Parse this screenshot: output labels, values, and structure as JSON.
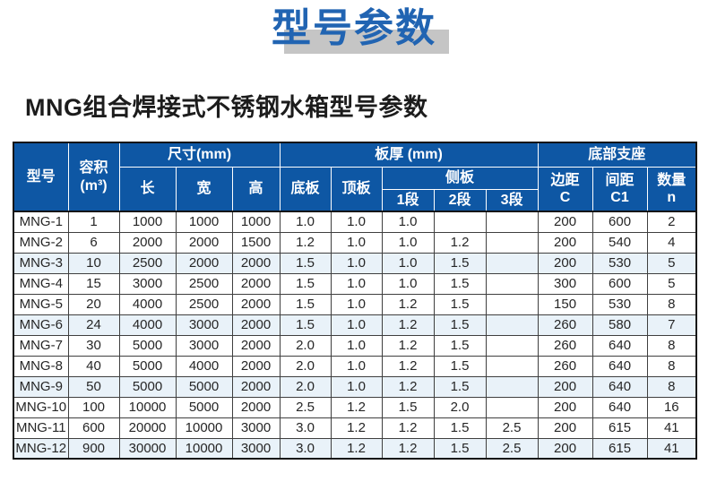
{
  "page": {
    "title": "型号参数",
    "subtitle": "MNG组合焊接式不锈钢水箱型号参数"
  },
  "colors": {
    "header_blue": "#0e57a4",
    "title_blue": "#2164b2",
    "title_shadow": "#c5c5c5",
    "row_highlight": "#e9f2f9"
  },
  "table": {
    "header": {
      "model": "型号",
      "volume": "容积\n(m³)",
      "size_group": "尺寸(mm)",
      "length": "长",
      "width": "宽",
      "height": "高",
      "thickness_group": "板厚 (mm)",
      "bottom_plate": "底板",
      "top_plate": "顶板",
      "side_plate": "侧板",
      "seg1": "1段",
      "seg2": "2段",
      "seg3": "3段",
      "support_group": "底部支座",
      "edge_distance": "边距\nC",
      "spacing": "间距\nC1",
      "quantity": "数量\nn"
    },
    "rows": [
      [
        "MNG-1",
        "1",
        "1000",
        "1000",
        "1000",
        "1.0",
        "1.0",
        "1.0",
        "",
        "",
        "200",
        "600",
        "2"
      ],
      [
        "MNG-2",
        "6",
        "2000",
        "2000",
        "1500",
        "1.2",
        "1.0",
        "1.0",
        "1.2",
        "",
        "200",
        "540",
        "4"
      ],
      [
        "MNG-3",
        "10",
        "2500",
        "2000",
        "2000",
        "1.5",
        "1.0",
        "1.0",
        "1.5",
        "",
        "200",
        "530",
        "5"
      ],
      [
        "MNG-4",
        "15",
        "3000",
        "2500",
        "2000",
        "1.5",
        "1.0",
        "1.0",
        "1.5",
        "",
        "300",
        "600",
        "5"
      ],
      [
        "MNG-5",
        "20",
        "4000",
        "2500",
        "2000",
        "1.5",
        "1.0",
        "1.2",
        "1.5",
        "",
        "150",
        "530",
        "8"
      ],
      [
        "MNG-6",
        "24",
        "4000",
        "3000",
        "2000",
        "1.5",
        "1.0",
        "1.2",
        "1.5",
        "",
        "260",
        "580",
        "7"
      ],
      [
        "MNG-7",
        "30",
        "5000",
        "3000",
        "2000",
        "2.0",
        "1.0",
        "1.2",
        "1.5",
        "",
        "260",
        "640",
        "8"
      ],
      [
        "MNG-8",
        "40",
        "5000",
        "4000",
        "2000",
        "2.0",
        "1.0",
        "1.2",
        "1.5",
        "",
        "260",
        "640",
        "8"
      ],
      [
        "MNG-9",
        "50",
        "5000",
        "5000",
        "2000",
        "2.0",
        "1.0",
        "1.2",
        "1.5",
        "",
        "200",
        "640",
        "8"
      ],
      [
        "MNG-10",
        "100",
        "10000",
        "5000",
        "2000",
        "2.5",
        "1.2",
        "1.5",
        "2.0",
        "",
        "200",
        "640",
        "16"
      ],
      [
        "MNG-11",
        "600",
        "20000",
        "10000",
        "3000",
        "3.0",
        "1.2",
        "1.2",
        "1.5",
        "2.5",
        "200",
        "615",
        "41"
      ],
      [
        "MNG-12",
        "900",
        "30000",
        "10000",
        "3000",
        "3.0",
        "1.2",
        "1.2",
        "1.5",
        "2.5",
        "200",
        "615",
        "41"
      ]
    ],
    "highlighted_rows": [
      2,
      5,
      8,
      11
    ]
  }
}
